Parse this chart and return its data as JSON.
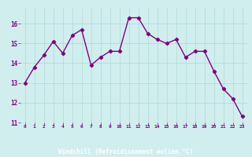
{
  "x": [
    0,
    1,
    2,
    3,
    4,
    5,
    6,
    7,
    8,
    9,
    10,
    11,
    12,
    13,
    14,
    15,
    16,
    17,
    18,
    19,
    20,
    21,
    22,
    23
  ],
  "y": [
    13.0,
    13.8,
    14.4,
    15.1,
    14.5,
    15.4,
    15.7,
    13.9,
    14.3,
    14.6,
    14.6,
    16.3,
    16.3,
    15.5,
    15.2,
    15.0,
    15.2,
    14.3,
    14.6,
    14.6,
    13.6,
    12.7,
    12.2,
    11.3
  ],
  "line_color": "#800080",
  "marker": "D",
  "marker_size": 2.2,
  "bg_color": "#d0eeee",
  "strip_color": "#800080",
  "grid_color": "#b0d8d8",
  "xlabel": "Windchill (Refroidissement éolien,°C)",
  "xlabel_color": "#800080",
  "tick_color": "#800080",
  "label_bg": "#800080",
  "label_fg": "#ffffff",
  "ylim": [
    11,
    16.8
  ],
  "xlim": [
    -0.5,
    23.5
  ],
  "yticks": [
    11,
    12,
    13,
    14,
    15,
    16
  ],
  "xticks": [
    0,
    1,
    2,
    3,
    4,
    5,
    6,
    7,
    8,
    9,
    10,
    11,
    12,
    13,
    14,
    15,
    16,
    17,
    18,
    19,
    20,
    21,
    22,
    23
  ],
  "linewidth": 1.0
}
